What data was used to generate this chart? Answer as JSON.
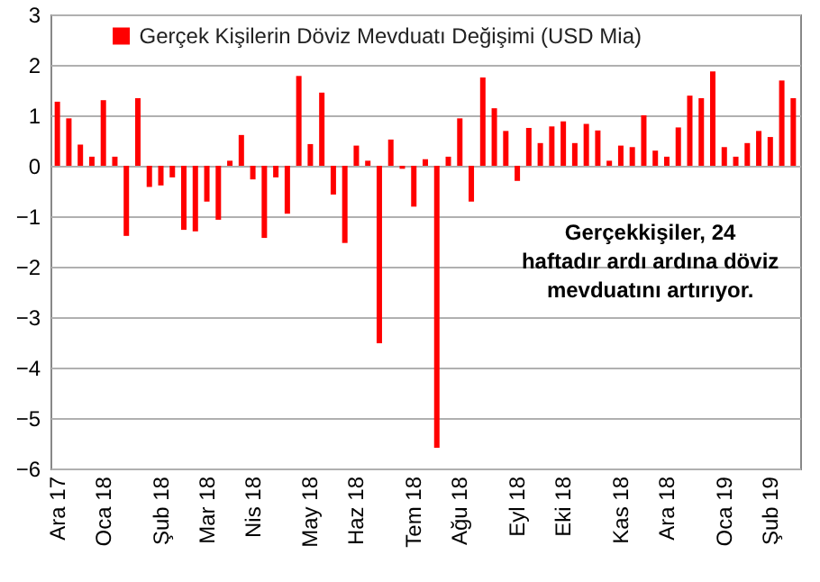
{
  "chart_data": {
    "type": "bar",
    "categories": [
      "Ara 17",
      null,
      null,
      null,
      "Oca 18",
      null,
      null,
      null,
      null,
      "Şub 18",
      null,
      null,
      null,
      "Mar 18",
      null,
      null,
      null,
      "Nis 18",
      null,
      null,
      null,
      null,
      "May 18",
      null,
      null,
      null,
      "Haz 18",
      null,
      null,
      null,
      null,
      "Tem 18",
      null,
      null,
      null,
      "Ağu 18",
      null,
      null,
      null,
      null,
      "Eyl 18",
      null,
      null,
      null,
      "Eki 18",
      null,
      null,
      null,
      null,
      "Kas 18",
      null,
      null,
      null,
      "Ara 18",
      null,
      null,
      null,
      null,
      "Oca 19",
      null,
      null,
      null,
      "Şub 19",
      null,
      null
    ],
    "series": [
      {
        "name": "Gerçek Kişilerin Döviz Mevduatı Değişimi (USD Mia)",
        "color": "#ff0000",
        "values": [
          1.27,
          0.94,
          0.42,
          0.18,
          1.3,
          0.18,
          -1.39,
          1.34,
          -0.42,
          -0.39,
          -0.23,
          -1.27,
          -1.3,
          -0.71,
          -1.07,
          0.1,
          0.61,
          -0.27,
          -1.43,
          -0.23,
          -0.95,
          1.78,
          0.43,
          1.45,
          -0.57,
          -1.53,
          0.4,
          0.1,
          -3.52,
          0.52,
          -0.06,
          -0.81,
          0.13,
          -5.59,
          0.18,
          0.94,
          -0.71,
          1.75,
          1.14,
          0.69,
          -0.3,
          0.75,
          0.45,
          0.78,
          0.88,
          0.45,
          0.83,
          0.7,
          0.1,
          0.4,
          0.37,
          1.0,
          0.3,
          0.18,
          0.76,
          1.39,
          1.34,
          1.87,
          0.37,
          0.18,
          0.45,
          0.69,
          0.57,
          1.69,
          1.34
        ]
      }
    ],
    "ylim": [
      -6,
      3
    ],
    "yticks": [
      -6,
      -5,
      -4,
      -3,
      -2,
      -1,
      0,
      1,
      2,
      3
    ],
    "grid": "y",
    "legend": "top",
    "annotations": [
      "Gerçekkişiler, 24\nhaftadır ardı ardına döviz\nmevduatını artırıyor."
    ]
  }
}
